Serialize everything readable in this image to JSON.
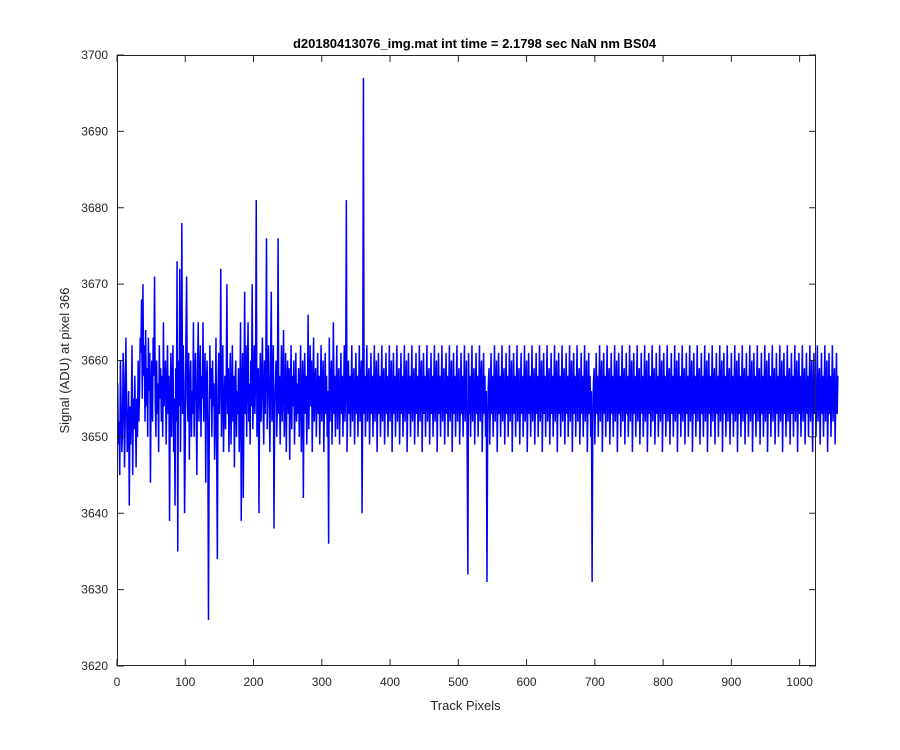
{
  "chart_data": {
    "type": "line",
    "title": "d20180413076_img.mat int time = 2.1798 sec  NaN nm BS04",
    "xlabel": "Track Pixels",
    "ylabel": "Signal (ADU) at pixel 366",
    "xlim": [
      0,
      1024
    ],
    "ylim": [
      3620,
      3700
    ],
    "xticks": [
      0,
      100,
      200,
      300,
      400,
      500,
      600,
      700,
      800,
      900,
      1000
    ],
    "yticks": [
      3620,
      3630,
      3640,
      3650,
      3660,
      3670,
      3680,
      3690,
      3700
    ],
    "grid": false,
    "legend": "none",
    "series_color": "#0000ff",
    "series": [
      {
        "x_start": 1,
        "x_step": 1,
        "values": [
          3657,
          3649,
          3652,
          3645,
          3660,
          3654,
          3648,
          3650,
          3661,
          3658,
          3646,
          3652,
          3663,
          3655,
          3648,
          3650,
          3656,
          3641,
          3654,
          3649,
          3653,
          3662,
          3645,
          3655,
          3651,
          3658,
          3653,
          3646,
          3655,
          3650,
          3660,
          3652,
          3656,
          3663,
          3661,
          3668,
          3655,
          3670,
          3658,
          3662,
          3652,
          3664,
          3654,
          3659,
          3650,
          3663,
          3656,
          3661,
          3644,
          3657,
          3660,
          3652,
          3663,
          3658,
          3671,
          3655,
          3650,
          3660,
          3653,
          3657,
          3648,
          3662,
          3655,
          3659,
          3652,
          3658,
          3650,
          3665,
          3654,
          3657,
          3660,
          3649,
          3656,
          3662,
          3653,
          3658,
          3639,
          3655,
          3661,
          3650,
          3657,
          3662,
          3648,
          3655,
          3641,
          3659,
          3652,
          3673,
          3635,
          3660,
          3654,
          3672,
          3648,
          3658,
          3678,
          3653,
          3662,
          3657,
          3640,
          3649,
          3663,
          3671,
          3655,
          3652,
          3661,
          3647,
          3657,
          3660,
          3650,
          3656,
          3653,
          3665,
          3650,
          3658,
          3661,
          3654,
          3645,
          3659,
          3665,
          3652,
          3657,
          3662,
          3650,
          3658,
          3655,
          3665,
          3652,
          3658,
          3661,
          3644,
          3657,
          3660,
          3652,
          3626,
          3648,
          3662,
          3655,
          3659,
          3650,
          3660,
          3654,
          3657,
          3647,
          3652,
          3663,
          3649,
          3634,
          3656,
          3661,
          3653,
          3658,
          3672,
          3650,
          3656,
          3662,
          3648,
          3654,
          3658,
          3651,
          3657,
          3670,
          3653,
          3659,
          3648,
          3656,
          3661,
          3649,
          3655,
          3662,
          3652,
          3658,
          3646,
          3657,
          3660,
          3650,
          3656,
          3653,
          3659,
          3648,
          3654,
          3665,
          3639,
          3657,
          3661,
          3642,
          3655,
          3669,
          3653,
          3662,
          3650,
          3658,
          3665,
          3652,
          3657,
          3649,
          3660,
          3654,
          3670,
          3651,
          3656,
          3662,
          3653,
          3658,
          3681,
          3650,
          3655,
          3659,
          3640,
          3656,
          3661,
          3652,
          3657,
          3663,
          3654,
          3649,
          3660,
          3653,
          3658,
          3676,
          3651,
          3657,
          3662,
          3655,
          3648,
          3659,
          3669,
          3652,
          3656,
          3662,
          3638,
          3654,
          3657,
          3660,
          3650,
          3655,
          3676,
          3653,
          3658,
          3649,
          3656,
          3662,
          3652,
          3657,
          3664,
          3650,
          3655,
          3661,
          3648,
          3657,
          3660,
          3653,
          3659,
          3647,
          3656,
          3662,
          3651,
          3658,
          3654,
          3660,
          3649,
          3655,
          3661,
          3652,
          3657,
          3653,
          3659,
          3650,
          3656,
          3662,
          3648,
          3655,
          3660,
          3642,
          3657,
          3661,
          3653,
          3658,
          3649,
          3655,
          3666,
          3651,
          3657,
          3662,
          3654,
          3660,
          3648,
          3656,
          3663,
          3652,
          3657,
          3659,
          3650,
          3655,
          3661,
          3653,
          3658,
          3649,
          3656,
          3662,
          3652,
          3657,
          3660,
          3648,
          3655,
          3661,
          3653,
          3658,
          3650,
          3656,
          3636,
          3663,
          3652,
          3657,
          3660,
          3649,
          3655,
          3665,
          3653,
          3658,
          3650,
          3656,
          3662,
          3651,
          3657,
          3659,
          3649,
          3655,
          3661,
          3653,
          3658,
          3650,
          3656,
          3662,
          3652,
          3657,
          3681,
          3648,
          3655,
          3660,
          3653,
          3658,
          3650,
          3656,
          3662,
          3652,
          3657,
          3659,
          3649,
          3655,
          3661,
          3653,
          3658,
          3650,
          3656,
          3662,
          3652,
          3657,
          3660,
          3640,
          3655,
          3697,
          3653,
          3658,
          3650,
          3656,
          3662,
          3652,
          3657,
          3659,
          3649,
          3655,
          3661,
          3653,
          3658,
          3650,
          3656,
          3662,
          3652,
          3657,
          3660,
          3648,
          3655,
          3661,
          3653,
          3658,
          3650,
          3656,
          3662,
          3652,
          3657,
          3659,
          3649,
          3655,
          3661,
          3653,
          3658,
          3650,
          3656,
          3662,
          3652,
          3657,
          3660,
          3648,
          3655,
          3661,
          3653,
          3658,
          3650,
          3656,
          3662,
          3652,
          3657,
          3659,
          3649,
          3655,
          3661,
          3653,
          3658,
          3650,
          3656,
          3662,
          3652,
          3657,
          3660,
          3648,
          3655,
          3661,
          3653,
          3658,
          3650,
          3656,
          3662,
          3652,
          3657,
          3659,
          3649,
          3655,
          3661,
          3653,
          3658,
          3650,
          3656,
          3662,
          3652,
          3657,
          3660,
          3648,
          3655,
          3661,
          3653,
          3658,
          3650,
          3656,
          3662,
          3652,
          3657,
          3659,
          3649,
          3655,
          3661,
          3653,
          3658,
          3650,
          3656,
          3662,
          3652,
          3657,
          3660,
          3648,
          3655,
          3661,
          3653,
          3658,
          3650,
          3656,
          3662,
          3652,
          3657,
          3659,
          3649,
          3655,
          3661,
          3653,
          3658,
          3650,
          3656,
          3662,
          3652,
          3657,
          3660,
          3648,
          3655,
          3661,
          3653,
          3658,
          3650,
          3656,
          3662,
          3652,
          3657,
          3659,
          3649,
          3655,
          3661,
          3653,
          3658,
          3650,
          3656,
          3662,
          3652,
          3657,
          3660,
          3648,
          3632,
          3661,
          3653,
          3658,
          3650,
          3656,
          3662,
          3652,
          3657,
          3659,
          3649,
          3655,
          3661,
          3653,
          3658,
          3650,
          3656,
          3662,
          3652,
          3657,
          3660,
          3648,
          3655,
          3661,
          3653,
          3658,
          3650,
          3656,
          3631,
          3652,
          3657,
          3659,
          3649,
          3655,
          3661,
          3653,
          3658,
          3650,
          3656,
          3662,
          3652,
          3657,
          3660,
          3648,
          3655,
          3661,
          3653,
          3658,
          3650,
          3656,
          3662,
          3652,
          3657,
          3659,
          3649,
          3655,
          3661,
          3653,
          3658,
          3650,
          3656,
          3662,
          3652,
          3657,
          3660,
          3648,
          3655,
          3661,
          3653,
          3658,
          3650,
          3656,
          3662,
          3652,
          3657,
          3659,
          3649,
          3655,
          3661,
          3653,
          3658,
          3650,
          3656,
          3662,
          3652,
          3657,
          3660,
          3648,
          3655,
          3661,
          3653,
          3658,
          3650,
          3656,
          3662,
          3652,
          3657,
          3659,
          3649,
          3655,
          3661,
          3653,
          3658,
          3650,
          3656,
          3662,
          3652,
          3657,
          3660,
          3648,
          3655,
          3661,
          3653,
          3658,
          3650,
          3656,
          3662,
          3652,
          3657,
          3659,
          3649,
          3655,
          3661,
          3653,
          3658,
          3650,
          3656,
          3662,
          3652,
          3657,
          3660,
          3648,
          3655,
          3661,
          3653,
          3658,
          3650,
          3656,
          3662,
          3652,
          3657,
          3659,
          3649,
          3655,
          3661,
          3653,
          3658,
          3650,
          3656,
          3662,
          3652,
          3657,
          3660,
          3648,
          3655,
          3661,
          3653,
          3658,
          3650,
          3656,
          3662,
          3652,
          3657,
          3659,
          3649,
          3655,
          3661,
          3653,
          3658,
          3650,
          3656,
          3662,
          3652,
          3657,
          3660,
          3648,
          3655,
          3661,
          3653,
          3658,
          3650,
          3656,
          3631,
          3652,
          3657,
          3659,
          3649,
          3655,
          3661,
          3653,
          3658,
          3650,
          3656,
          3662,
          3652,
          3657,
          3660,
          3648,
          3655,
          3661,
          3653,
          3658,
          3650,
          3656,
          3662,
          3652,
          3657,
          3659,
          3649,
          3655,
          3661,
          3653,
          3658,
          3650,
          3656,
          3662,
          3652,
          3657,
          3660,
          3648,
          3655,
          3661,
          3653,
          3658,
          3650,
          3656,
          3662,
          3652,
          3657,
          3659,
          3649,
          3655,
          3661,
          3653,
          3658,
          3650,
          3656,
          3662,
          3652,
          3657,
          3660,
          3648,
          3655,
          3661,
          3653,
          3658,
          3650,
          3656,
          3662,
          3652,
          3657,
          3659,
          3649,
          3655,
          3661,
          3653,
          3658,
          3650,
          3656,
          3662,
          3652,
          3657,
          3660,
          3648,
          3655,
          3661,
          3653,
          3658,
          3650,
          3656,
          3662,
          3652,
          3657,
          3659,
          3649,
          3655,
          3661,
          3653,
          3658,
          3650,
          3656,
          3662,
          3652,
          3657,
          3660,
          3648,
          3655,
          3661,
          3653,
          3658,
          3650,
          3656,
          3662,
          3652,
          3657,
          3659,
          3649,
          3655,
          3661,
          3653,
          3658,
          3650,
          3656,
          3662,
          3652,
          3657,
          3660,
          3648,
          3655,
          3661,
          3653,
          3658,
          3650,
          3656,
          3662,
          3652,
          3657,
          3659,
          3649,
          3655,
          3661,
          3653,
          3658,
          3650,
          3656,
          3662,
          3652,
          3657,
          3660,
          3648,
          3655,
          3661,
          3653,
          3658,
          3650,
          3656,
          3662,
          3652,
          3657,
          3659,
          3649,
          3655,
          3661,
          3653,
          3658,
          3650,
          3656,
          3662,
          3652,
          3657,
          3660,
          3648,
          3655,
          3661,
          3653,
          3658,
          3650,
          3656,
          3662,
          3652,
          3657,
          3659,
          3649,
          3655,
          3661,
          3653,
          3658,
          3650,
          3656,
          3662,
          3652,
          3657,
          3660,
          3648,
          3655,
          3661,
          3653,
          3658,
          3650,
          3656,
          3662,
          3652,
          3657,
          3659,
          3649,
          3655,
          3661,
          3653,
          3658,
          3650,
          3656,
          3662,
          3652,
          3657,
          3660,
          3648,
          3655,
          3661,
          3653,
          3658,
          3650,
          3656,
          3662,
          3652,
          3657,
          3659,
          3649,
          3655,
          3661,
          3653,
          3658,
          3650,
          3656,
          3662,
          3652,
          3657,
          3660,
          3648,
          3655,
          3661,
          3653,
          3658,
          3650,
          3656,
          3662,
          3652,
          3657,
          3659,
          3649,
          3655,
          3661,
          3653,
          3658,
          3650,
          3656,
          3662,
          3652,
          3657,
          3660,
          3648,
          3655,
          3661,
          3653,
          3658,
          3650,
          3656,
          3662,
          3652,
          3657,
          3659,
          3649,
          3655,
          3661,
          3653,
          3658,
          3650,
          3656,
          3662,
          3652,
          3657,
          3660,
          3648,
          3655,
          3661,
          3653,
          3658,
          3650,
          3656,
          3662,
          3652,
          3657,
          3659,
          3649,
          3655,
          3661,
          3653,
          3658,
          3650,
          3656,
          3662,
          3652,
          3657,
          3660,
          3648,
          3655,
          3661,
          3653,
          3658,
          3650,
          3656,
          3662,
          3652,
          3657,
          3659,
          3649,
          3655,
          3661,
          3653,
          3658,
          3650,
          3656,
          3662,
          3652,
          3657,
          3660,
          3648,
          3655,
          3661,
          3653,
          3658,
          3650,
          3656,
          3662,
          3652,
          3657,
          3659,
          3649,
          3655,
          3661,
          3653,
          3658,
          3650,
          3656,
          3662,
          3652,
          3657,
          3660,
          3648,
          3655,
          3661,
          3653,
          3658,
          3650,
          3656,
          3662,
          3652,
          3657,
          3659,
          3649,
          3655,
          3661,
          3653,
          3658
        ]
      }
    ]
  }
}
